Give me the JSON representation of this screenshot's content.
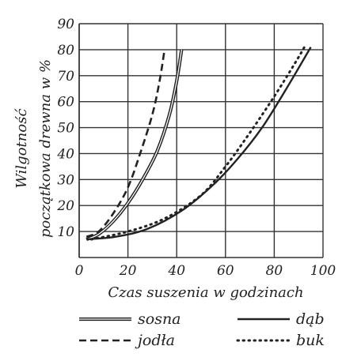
{
  "chart_data": {
    "type": "line",
    "xlabel": "Czas suszenia w godzinach",
    "ylabel_line1": "Wilgotność",
    "ylabel_line2": "początkowa drewna w %",
    "xlim": [
      0,
      100
    ],
    "ylim": [
      0,
      90
    ],
    "x_ticks": [
      "0",
      "20",
      "40",
      "60",
      "80",
      "100"
    ],
    "y_ticks": [
      "10",
      "20",
      "30",
      "40",
      "50",
      "60",
      "70",
      "80",
      "90"
    ],
    "grid": true,
    "legend_position": "bottom",
    "series": [
      {
        "name": "sosna",
        "style": "double-solid",
        "x": [
          3,
          8,
          14,
          20,
          26,
          32,
          37,
          40,
          42
        ],
        "y": [
          7,
          9,
          14,
          21,
          30,
          41,
          55,
          68,
          80
        ]
      },
      {
        "name": "jodła",
        "style": "dashed",
        "x": [
          3,
          8,
          14,
          20,
          25,
          30,
          33,
          35
        ],
        "y": [
          8,
          10,
          17,
          27,
          40,
          55,
          68,
          80
        ]
      },
      {
        "name": "dąb",
        "style": "solid",
        "x": [
          3,
          15,
          28,
          42,
          55,
          65,
          75,
          85,
          95
        ],
        "y": [
          7,
          8,
          11,
          18,
          28,
          38,
          50,
          65,
          81
        ]
      },
      {
        "name": "buk",
        "style": "dotted",
        "x": [
          5,
          20,
          35,
          50,
          60,
          70,
          80,
          88,
          93
        ],
        "y": [
          7,
          10,
          15,
          24,
          35,
          48,
          62,
          74,
          82
        ]
      }
    ]
  }
}
